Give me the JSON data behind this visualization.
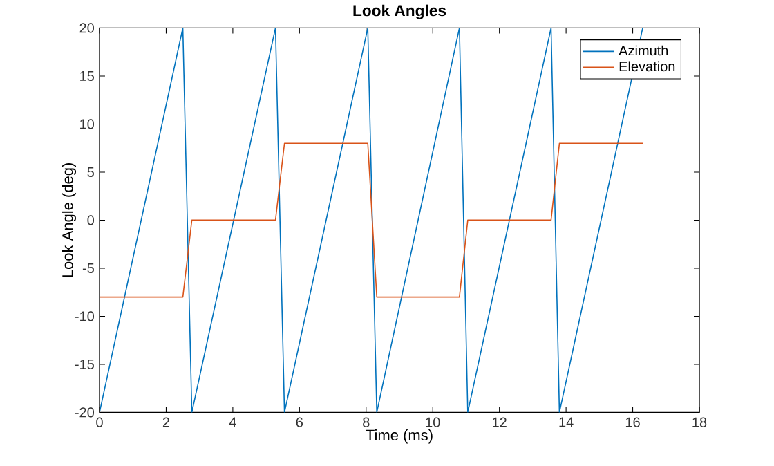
{
  "chart_data": {
    "type": "line",
    "title": "Look Angles",
    "xlabel": "Time (ms)",
    "ylabel": "Look Angle (deg)",
    "xlim": [
      0,
      18
    ],
    "xticks": [
      0,
      2,
      4,
      6,
      8,
      10,
      12,
      14,
      16,
      18
    ],
    "ylim": [
      -20,
      20
    ],
    "yticks": [
      -20,
      -15,
      -10,
      -5,
      0,
      5,
      10,
      15,
      20
    ],
    "legend": "top right",
    "grid": false,
    "series": [
      {
        "name": "Azimuth",
        "color": "#0072bd",
        "x": [
          0,
          2.5,
          2.77,
          5.28,
          5.55,
          8.05,
          8.32,
          10.8,
          11.05,
          13.55,
          13.8,
          16.3
        ],
        "values": [
          -20,
          20,
          -20,
          20,
          -20,
          20,
          -20,
          20,
          -20,
          20,
          -20,
          20
        ]
      },
      {
        "name": "Elevation",
        "color": "#d95319",
        "x": [
          0,
          2.5,
          2.77,
          5.28,
          5.55,
          8.05,
          8.32,
          10.8,
          11.05,
          13.55,
          13.8,
          16.3
        ],
        "values": [
          -8,
          -8,
          0,
          0,
          8,
          8,
          -8,
          -8,
          0,
          0,
          8,
          8
        ]
      }
    ]
  }
}
